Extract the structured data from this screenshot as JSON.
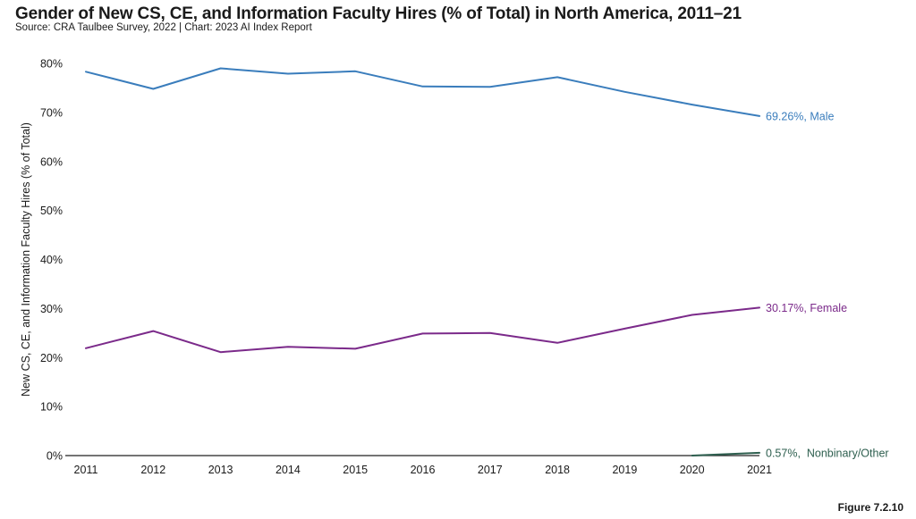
{
  "header": {
    "title": "Gender of New CS, CE, and Information Faculty Hires (% of Total) in North America, 2011–21",
    "subtitle": "Source: CRA Taulbee Survey, 2022 | Chart: 2023 AI Index Report"
  },
  "footer": {
    "figure_label": "Figure 7.2.10"
  },
  "chart_data": {
    "type": "line",
    "title": "Gender of New CS, CE, and Information Faculty Hires (% of Total) in North America, 2011–21",
    "xlabel": "",
    "ylabel": "New CS, CE, and Information Faculty Hires (% of Total)",
    "x": [
      "2011",
      "2012",
      "2013",
      "2014",
      "2015",
      "2016",
      "2017",
      "2018",
      "2019",
      "2020",
      "2021"
    ],
    "ylim": [
      0,
      80
    ],
    "yticks": [
      0,
      10,
      20,
      30,
      40,
      50,
      60,
      70,
      80
    ],
    "ytick_labels": [
      "0%",
      "10%",
      "20%",
      "30%",
      "40%",
      "50%",
      "60%",
      "70%",
      "80%"
    ],
    "grid": false,
    "series": [
      {
        "name": "Male",
        "color": "#3a7dbc",
        "values": [
          78.3,
          74.8,
          79.0,
          77.9,
          78.4,
          75.3,
          75.2,
          77.2,
          74.2,
          71.6,
          69.26
        ],
        "end_label": "69.26%, Male"
      },
      {
        "name": "Female",
        "color": "#7b2a8a",
        "values": [
          21.9,
          25.4,
          21.1,
          22.2,
          21.8,
          24.9,
          25.0,
          23.0,
          25.9,
          28.7,
          30.17
        ],
        "end_label": "30.17%, Female"
      },
      {
        "name": "Nonbinary/Other",
        "color": "#2e5f4f",
        "values": [
          null,
          null,
          null,
          null,
          null,
          null,
          null,
          null,
          null,
          0.0,
          0.57
        ],
        "end_label": "0.57%,  Nonbinary/Other"
      }
    ]
  }
}
